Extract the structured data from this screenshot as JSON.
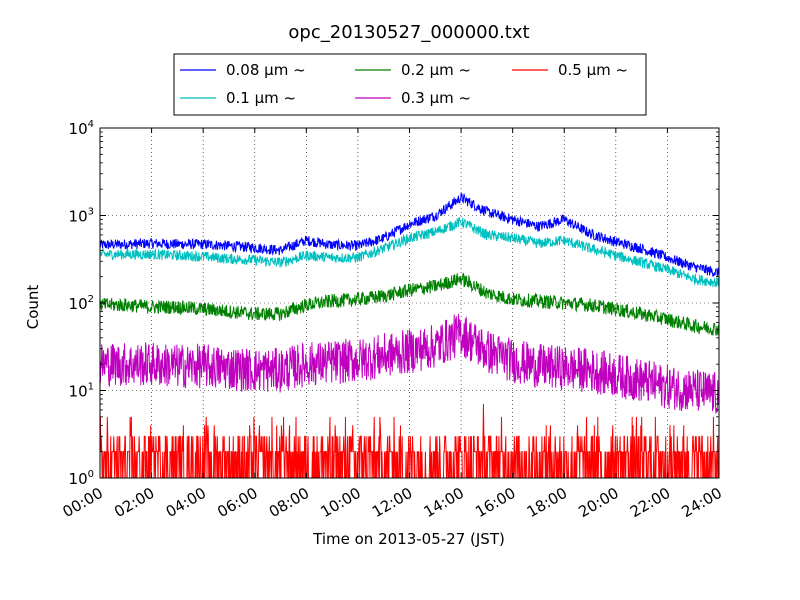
{
  "chart_data": {
    "type": "line",
    "title": "opc_20130527_000000.txt",
    "xlabel": "Time on 2013-05-27 (JST)",
    "ylabel": "Count",
    "yscale": "log",
    "ylim": [
      1,
      10000
    ],
    "xlim": [
      "00:00",
      "24:00"
    ],
    "grid": true,
    "legend_position": "top-center, above plot",
    "x_ticks": [
      "00:00",
      "02:00",
      "04:00",
      "06:00",
      "08:00",
      "10:00",
      "12:00",
      "14:00",
      "16:00",
      "18:00",
      "20:00",
      "22:00",
      "24:00"
    ],
    "y_ticks": [
      {
        "base": "10",
        "exp": "0",
        "value": 1
      },
      {
        "base": "10",
        "exp": "1",
        "value": 10
      },
      {
        "base": "10",
        "exp": "2",
        "value": 100
      },
      {
        "base": "10",
        "exp": "3",
        "value": 1000
      },
      {
        "base": "10",
        "exp": "4",
        "value": 10000
      }
    ],
    "x_hours": [
      0,
      1,
      2,
      3,
      4,
      5,
      6,
      7,
      8,
      9,
      10,
      11,
      12,
      13,
      14,
      15,
      16,
      17,
      18,
      19,
      20,
      21,
      22,
      23,
      24
    ],
    "series": [
      {
        "name": "0.08 μm ~",
        "color": "#0000ff",
        "values": [
          460,
          470,
          480,
          470,
          470,
          450,
          430,
          400,
          520,
          460,
          450,
          550,
          800,
          1000,
          1600,
          1100,
          900,
          750,
          900,
          620,
          500,
          420,
          330,
          260,
          220
        ]
      },
      {
        "name": "0.1 μm ~",
        "color": "#00bfbf",
        "values": [
          360,
          360,
          360,
          350,
          340,
          320,
          310,
          290,
          350,
          330,
          330,
          420,
          550,
          650,
          850,
          600,
          550,
          480,
          520,
          420,
          350,
          290,
          240,
          190,
          170
        ]
      },
      {
        "name": "0.2 μm ~",
        "color": "#008000",
        "values": [
          95,
          95,
          90,
          90,
          85,
          80,
          75,
          75,
          95,
          105,
          110,
          120,
          140,
          155,
          190,
          130,
          110,
          105,
          100,
          95,
          85,
          75,
          65,
          55,
          50
        ]
      },
      {
        "name": "0.3 μm ~",
        "color": "#bf00bf",
        "values": [
          20,
          20,
          20,
          19,
          19,
          18,
          17,
          17,
          20,
          21,
          22,
          25,
          28,
          32,
          45,
          28,
          22,
          19,
          18,
          17,
          15,
          13,
          11,
          10,
          9
        ]
      },
      {
        "name": "0.5 μm ~",
        "color": "#ff0000",
        "values": [
          2,
          2,
          2,
          2,
          2,
          2,
          2,
          2,
          2,
          2,
          2,
          2,
          2,
          2,
          4,
          2.5,
          2,
          2,
          2,
          2,
          2,
          2,
          2,
          2,
          2
        ]
      }
    ]
  }
}
